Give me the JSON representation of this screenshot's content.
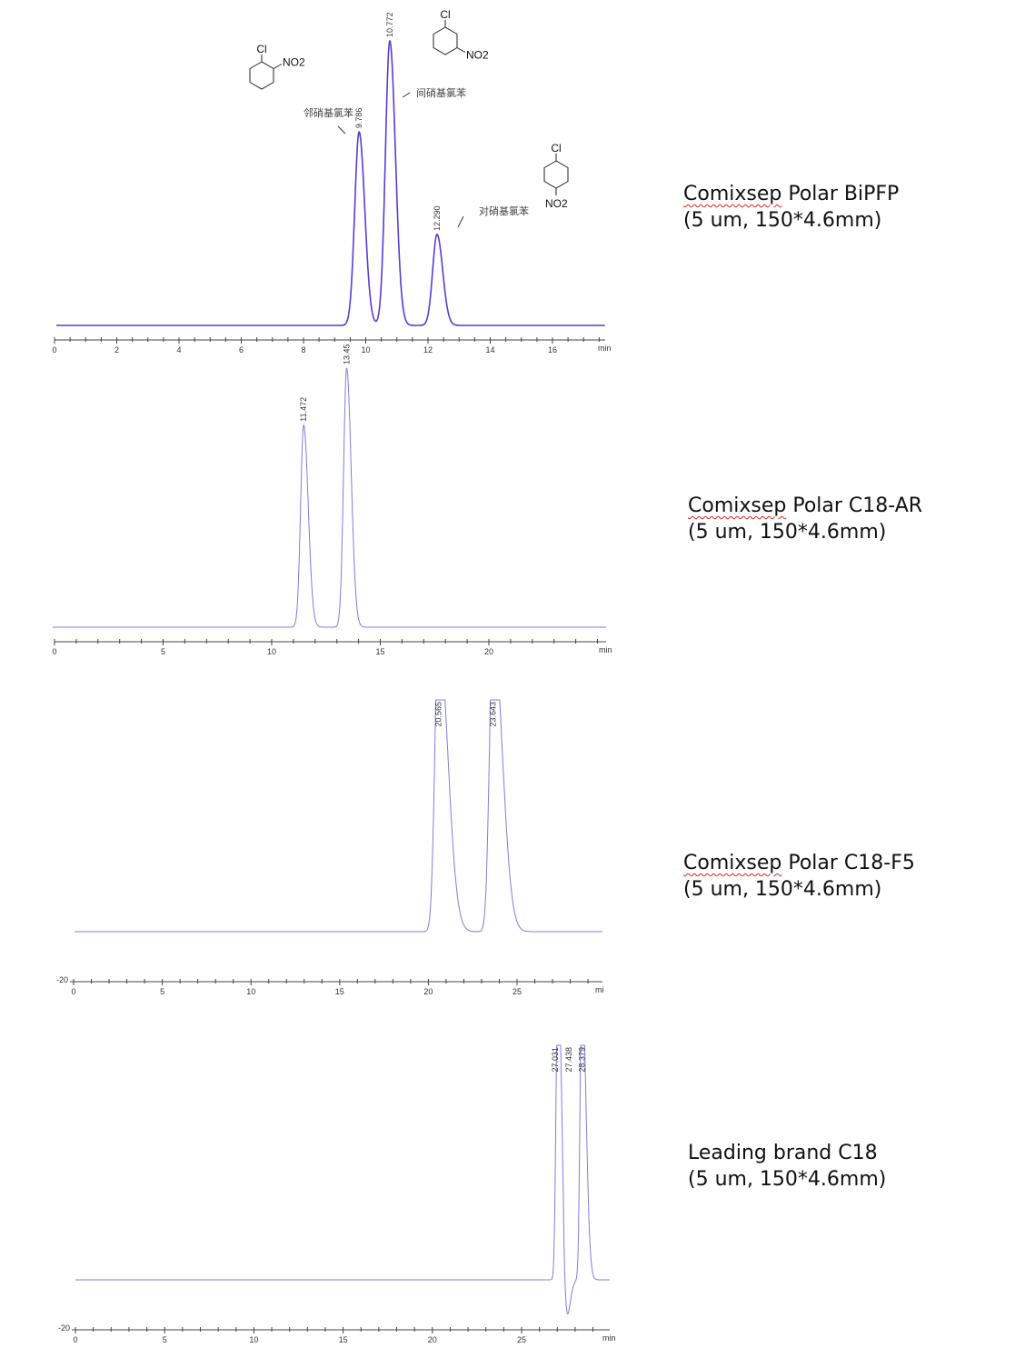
{
  "chart_data": [
    {
      "type": "line",
      "column": {
        "brand": "Comixsep",
        "name": "Polar BiPFP",
        "spec": "(5 um, 150*4.6mm)"
      },
      "xlabel": "min",
      "xlim": [
        0,
        17.6
      ],
      "xticks": [
        0,
        2,
        4,
        6,
        8,
        10,
        12,
        14,
        16
      ],
      "color": "#5a3ad8",
      "peaks": [
        {
          "rt": 9.786,
          "label": "9.786",
          "relative_height": 0.68,
          "compound": "邻硝基氯苯"
        },
        {
          "rt": 10.772,
          "label": "10.772",
          "relative_height": 1.0,
          "compound": "间硝基氯苯"
        },
        {
          "rt": 12.29,
          "label": "12.290",
          "relative_height": 0.32,
          "compound": "对硝基氯苯"
        }
      ],
      "structures": [
        {
          "substituents": [
            "Cl",
            "NO2"
          ],
          "position": "ortho"
        },
        {
          "substituents": [
            "Cl",
            "NO2"
          ],
          "position": "meta"
        },
        {
          "substituents": [
            "Cl",
            "NO2"
          ],
          "position": "para"
        }
      ]
    },
    {
      "type": "line",
      "column": {
        "brand": "Comixsep",
        "name": "Polar C18-AR",
        "spec": "(5 um, 150*4.6mm)"
      },
      "xlabel": "min",
      "xlim": [
        0,
        22.8
      ],
      "xticks": [
        0,
        5,
        10,
        15,
        20
      ],
      "color": "#7b7fe0",
      "peaks": [
        {
          "rt": 11.472,
          "label": "11.472",
          "relative_height": 0.78
        },
        {
          "rt": 13.45,
          "label": "13.45",
          "relative_height": 1.0
        }
      ]
    },
    {
      "type": "line",
      "column": {
        "brand": "Comixsep",
        "name": "Polar C18-F5",
        "spec": "(5 um, 150*4.6mm)"
      },
      "xlabel": "mi",
      "xlim": [
        0,
        29.5
      ],
      "xticks": [
        0,
        5,
        10,
        15,
        20,
        25
      ],
      "yticks": [
        -20
      ],
      "color": "#7b7fe0",
      "peaks": [
        {
          "rt": 20.565,
          "label": "20.565",
          "relative_height": 1.3
        },
        {
          "rt": 23.643,
          "label": "23.643",
          "relative_height": 1.3
        }
      ]
    },
    {
      "type": "line",
      "column": {
        "brand": "",
        "name": "Leading brand C18",
        "spec": "(5 um, 150*4.6mm)"
      },
      "xlabel": "min",
      "xlim": [
        0,
        29.5
      ],
      "xticks": [
        0,
        5,
        10,
        15,
        20,
        25
      ],
      "yticks": [
        -20
      ],
      "color": "#7b7fe0",
      "peaks": [
        {
          "rt": 27.031,
          "label": "27.031",
          "relative_height": 1.3
        },
        {
          "rt": 27.438,
          "label": "27.438",
          "relative_height": 0.1
        },
        {
          "rt": 28.379,
          "label": "28.379",
          "relative_height": 1.3
        }
      ]
    }
  ]
}
